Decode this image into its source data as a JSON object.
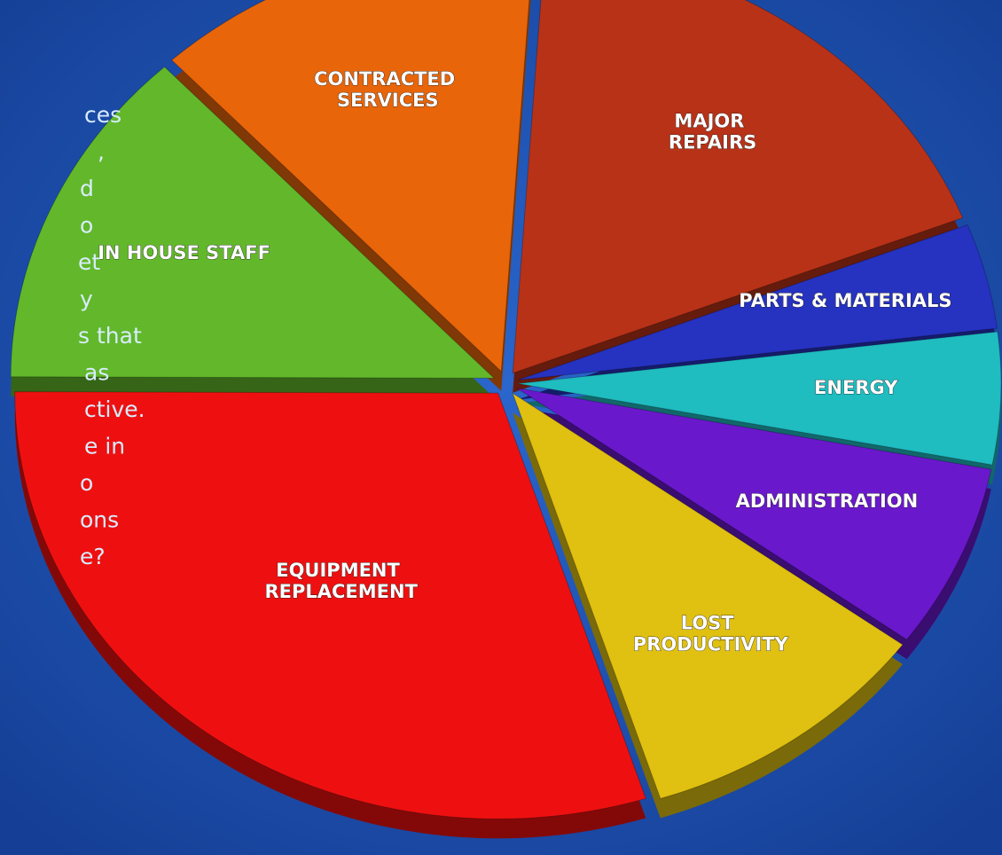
{
  "slide_text": [
    "ces",
    ",",
    "d",
    "o",
    "et",
    "y",
    "s that",
    "as",
    "ctive.",
    "e in",
    "o",
    "ons",
    "e?"
  ],
  "chart_data": {
    "type": "pie",
    "categories": [
      "CONTRACTED SERVICES",
      "MAJOR REPAIRS",
      "PARTS & MATERIALS",
      "ENERGY",
      "ADMINISTRATION",
      "LOST PRODUCTIVITY",
      "EQUIPMENT REPLACEMENT",
      "IN HOUSE STAFF"
    ],
    "values": [
      13,
      18,
      4,
      5,
      7,
      10,
      30,
      13
    ],
    "colors": [
      "#e8650a",
      "#b83218",
      "#2632c0",
      "#1fbcc0",
      "#6a18cc",
      "#e0c010",
      "#ee1010",
      "#62b82a"
    ]
  }
}
